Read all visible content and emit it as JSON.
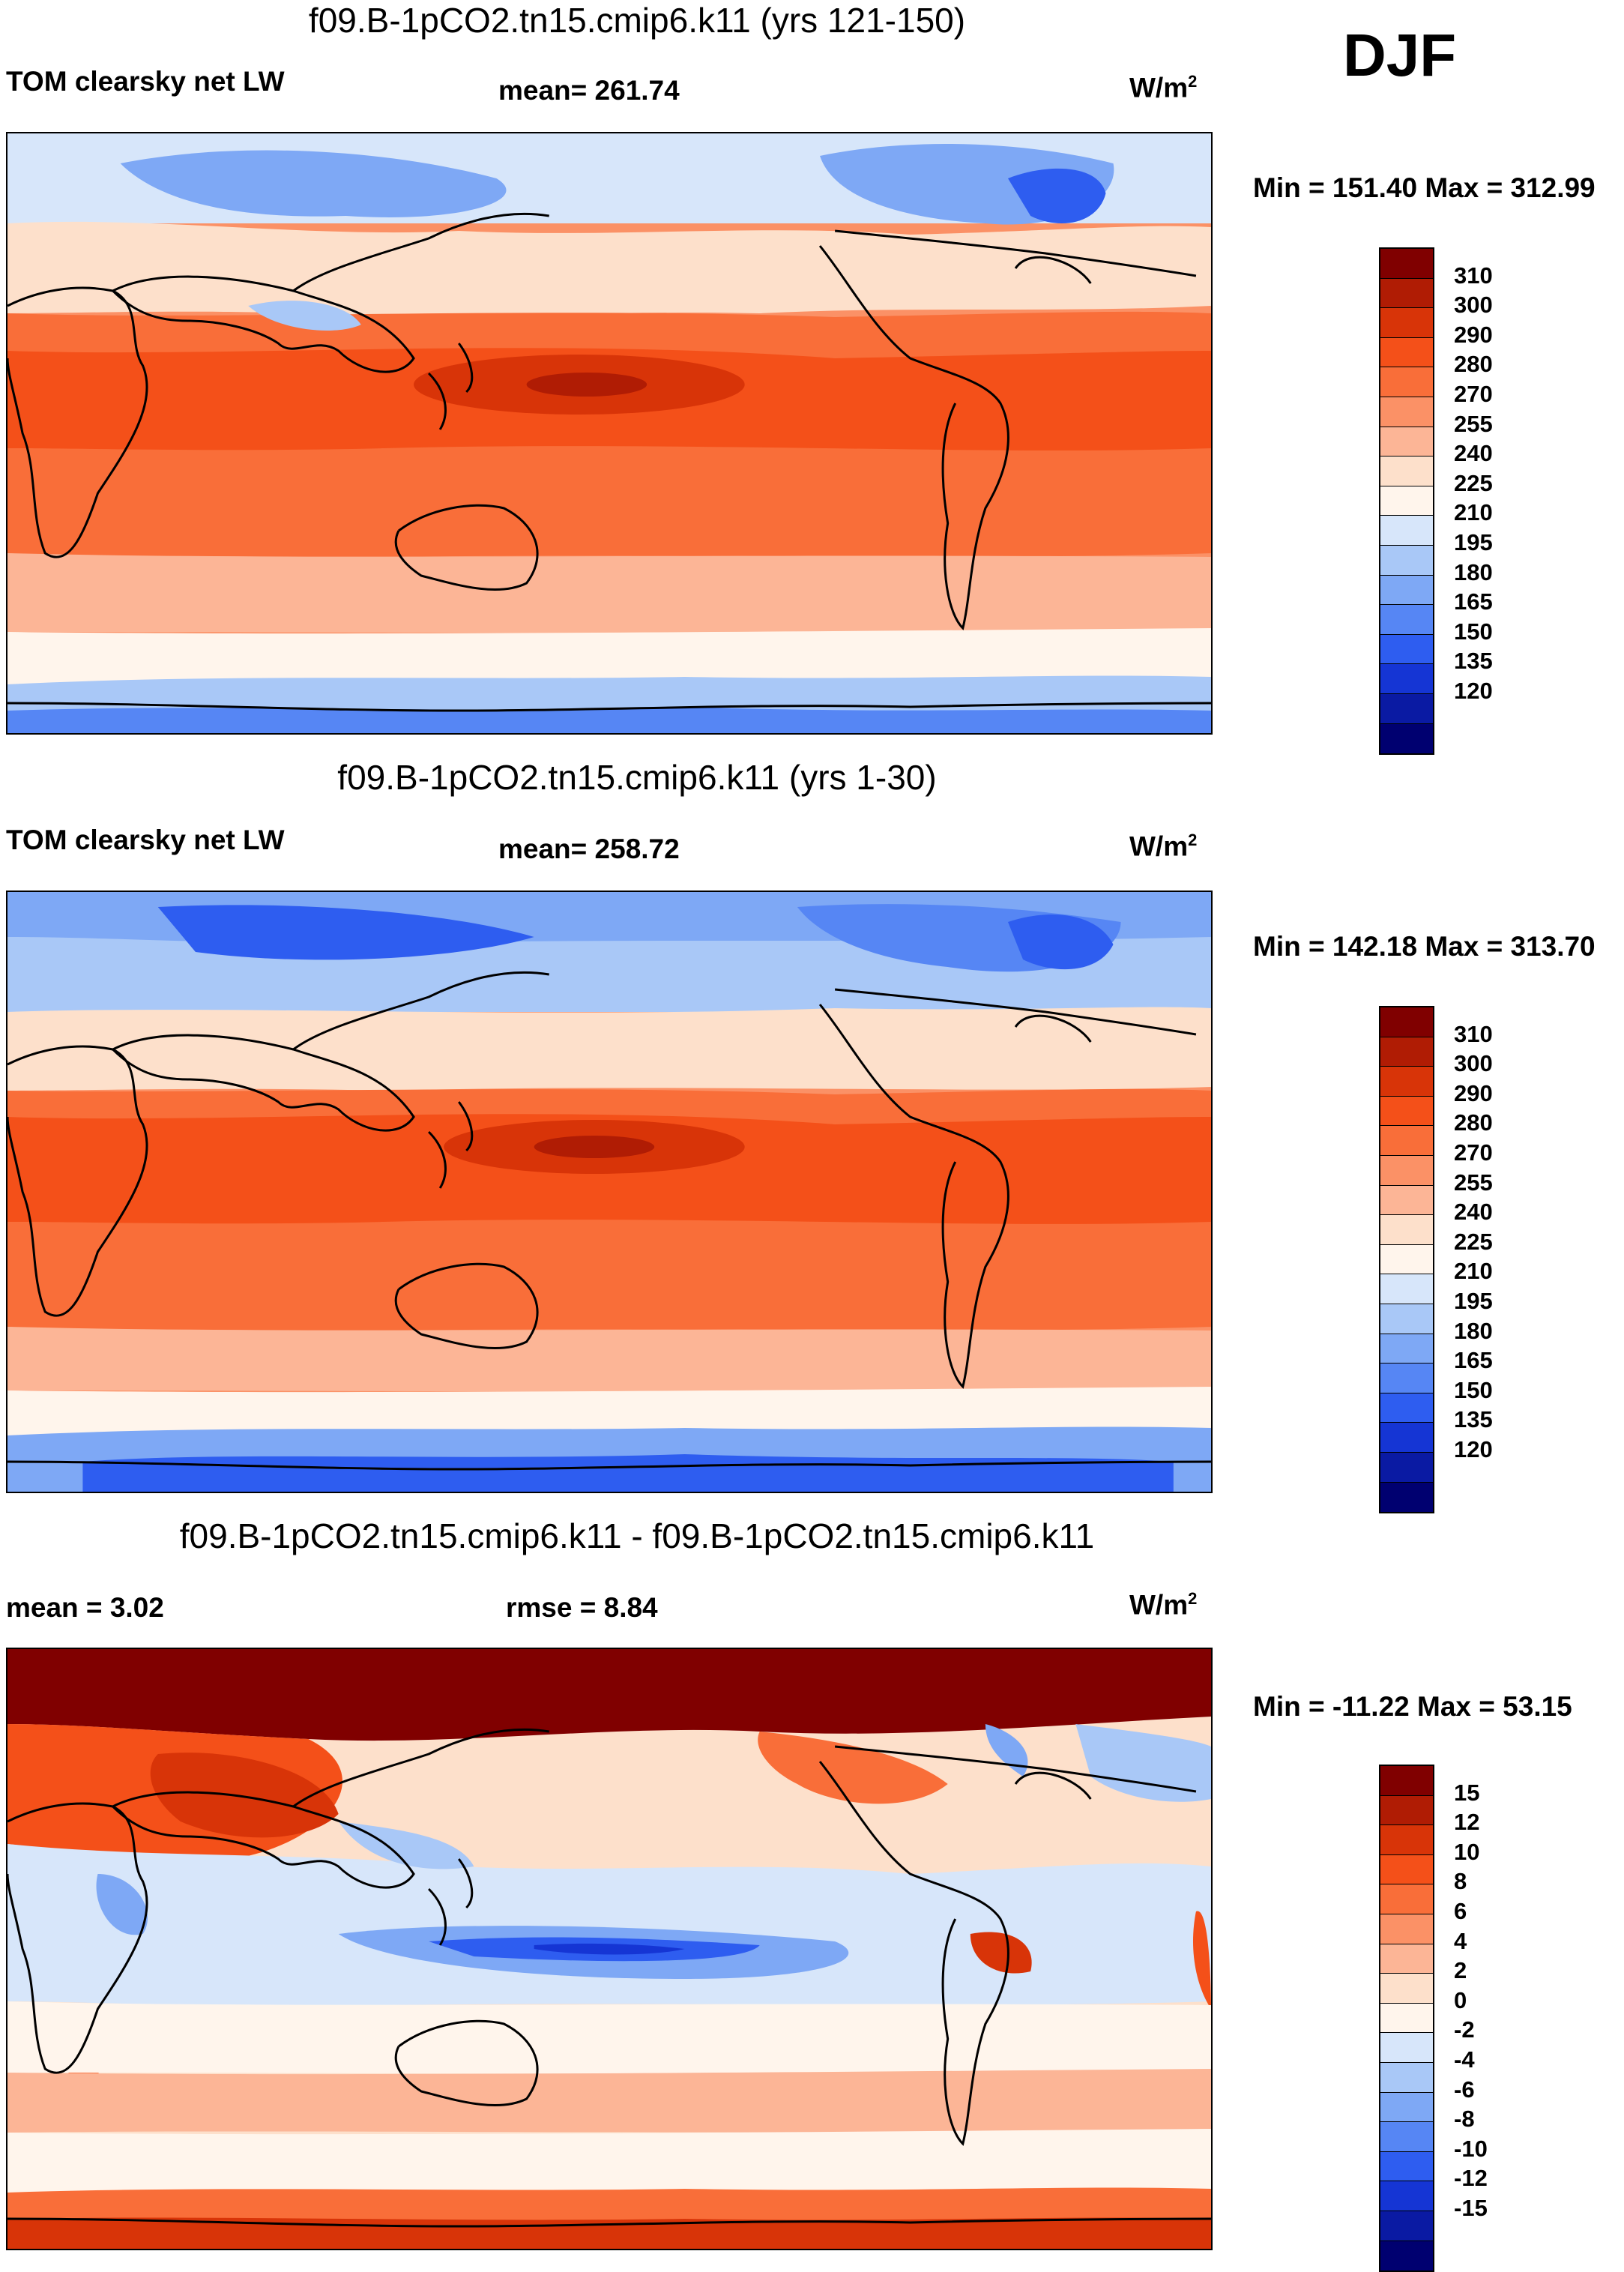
{
  "season": "DJF",
  "panels": [
    {
      "title": "f09.B-1pCO2.tn15.cmip6.k11 (yrs 121-150)",
      "left_label": "TOM clearsky net LW",
      "center_label": "mean= 261.74",
      "units_base": "W/m",
      "units_exp": "2",
      "minmax": "Min = 151.40 Max = 312.99",
      "colorbar": {
        "ticks": [
          "310",
          "300",
          "290",
          "280",
          "270",
          "255",
          "240",
          "225",
          "210",
          "195",
          "180",
          "165",
          "150",
          "135",
          "120"
        ],
        "colors": [
          "#800000",
          "#b01c04",
          "#d83408",
          "#f45019",
          "#f96e39",
          "#fb9166",
          "#fcb596",
          "#fde0cb",
          "#fff5ec",
          "#d7e6fa",
          "#a9c8f7",
          "#7ea8f5",
          "#5686f4",
          "#2e5df0",
          "#1535d4",
          "#0a1aa3",
          "#000070"
        ]
      }
    },
    {
      "title": "f09.B-1pCO2.tn15.cmip6.k11 (yrs 1-30)",
      "left_label": "TOM clearsky net LW",
      "center_label": "mean= 258.72",
      "units_base": "W/m",
      "units_exp": "2",
      "minmax": "Min = 142.18 Max = 313.70",
      "colorbar": {
        "ticks": [
          "310",
          "300",
          "290",
          "280",
          "270",
          "255",
          "240",
          "225",
          "210",
          "195",
          "180",
          "165",
          "150",
          "135",
          "120"
        ],
        "colors": [
          "#800000",
          "#b01c04",
          "#d83408",
          "#f45019",
          "#f96e39",
          "#fb9166",
          "#fcb596",
          "#fde0cb",
          "#fff5ec",
          "#d7e6fa",
          "#a9c8f7",
          "#7ea8f5",
          "#5686f4",
          "#2e5df0",
          "#1535d4",
          "#0a1aa3",
          "#000070"
        ]
      }
    },
    {
      "title": "f09.B-1pCO2.tn15.cmip6.k11 - f09.B-1pCO2.tn15.cmip6.k11",
      "left_label": "mean =   3.02",
      "center_label": "rmse =   8.84",
      "units_base": "W/m",
      "units_exp": "2",
      "minmax": "Min = -11.22 Max =  53.15",
      "colorbar": {
        "ticks": [
          "15",
          "12",
          "10",
          "8",
          "6",
          "4",
          "2",
          "0",
          "-2",
          "-4",
          "-6",
          "-8",
          "-10",
          "-12",
          "-15"
        ],
        "colors": [
          "#800000",
          "#b01c04",
          "#d83408",
          "#f45019",
          "#f96e39",
          "#fb9166",
          "#fcb596",
          "#fde0cb",
          "#fff5ec",
          "#d7e6fa",
          "#a9c8f7",
          "#7ea8f5",
          "#5686f4",
          "#2e5df0",
          "#1535d4",
          "#0a1aa3",
          "#000070"
        ]
      }
    }
  ]
}
